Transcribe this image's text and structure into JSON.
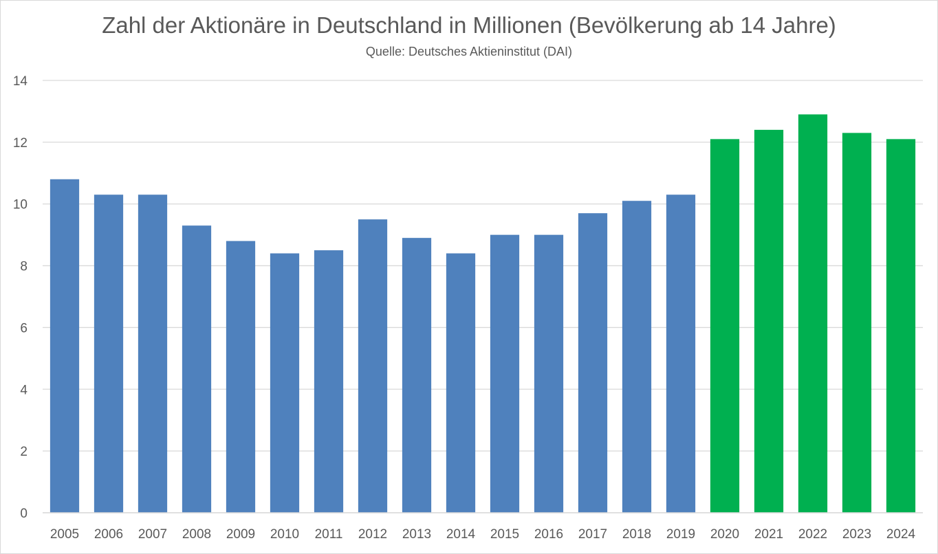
{
  "chart_data": {
    "type": "bar",
    "title": "Zahl der Aktionäre in Deutschland in Millionen (Bevölkerung ab 14 Jahre)",
    "subtitle": "Quelle: Deutsches Aktieninstitut (DAI)",
    "xlabel": "",
    "ylabel": "",
    "ylim": [
      0,
      14
    ],
    "yticks": [
      0,
      2,
      4,
      6,
      8,
      10,
      12,
      14
    ],
    "grid": true,
    "legend": "none",
    "categories": [
      "2005",
      "2006",
      "2007",
      "2008",
      "2009",
      "2010",
      "2011",
      "2012",
      "2013",
      "2014",
      "2015",
      "2016",
      "2017",
      "2018",
      "2019",
      "2020",
      "2021",
      "2022",
      "2023",
      "2024"
    ],
    "values": [
      10.8,
      10.3,
      10.3,
      9.3,
      8.8,
      8.4,
      8.5,
      9.5,
      8.9,
      8.4,
      9.0,
      9.0,
      9.7,
      10.1,
      10.3,
      12.1,
      12.4,
      12.9,
      12.3,
      12.1
    ],
    "colors": {
      "default": "#4F81BD",
      "highlight": "#00B050",
      "highlight_categories": [
        "2020",
        "2021",
        "2022",
        "2023",
        "2024"
      ],
      "grid": "#D9D9D9",
      "text": "#595959"
    }
  }
}
